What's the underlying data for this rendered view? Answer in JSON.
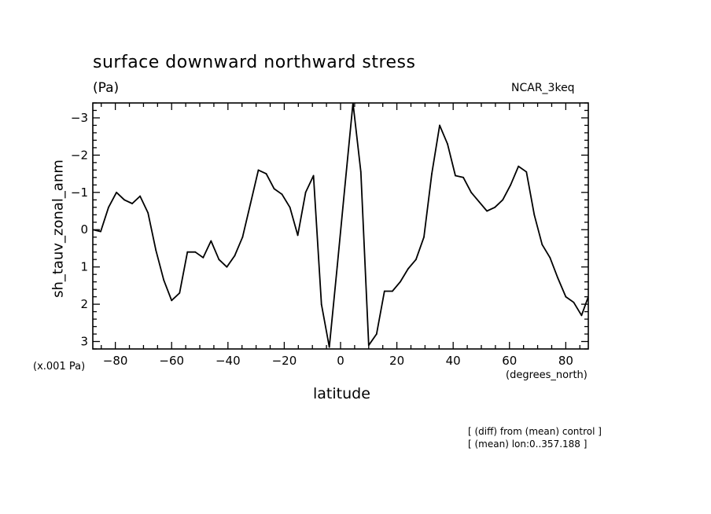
{
  "chart_data": {
    "type": "line",
    "title": "surface downward northward stress",
    "units_label": "(Pa)",
    "model_label": "NCAR_3keq",
    "xlabel": "latitude",
    "xlabel_units": "(degrees_north)",
    "ylabel": "sh_tauv_zonal_anm",
    "y_scale_label": "(x.001 Pa)",
    "notes": [
      "[ (diff) from (mean) control ]",
      "[ (mean) lon:0..357.188 ]"
    ],
    "xlim": [
      -88,
      88
    ],
    "ylim": [
      -3.4,
      3.2
    ],
    "y_inverted": true,
    "x_ticks": [
      -80,
      -60,
      -40,
      -20,
      0,
      20,
      40,
      60,
      80
    ],
    "x_tick_labels": [
      "−80",
      "−60",
      "−40",
      "−20",
      "0",
      "20",
      "40",
      "60",
      "80"
    ],
    "y_ticks": [
      -3,
      -2,
      -1,
      0,
      1,
      2,
      3
    ],
    "y_tick_labels": [
      "−3",
      "−2",
      "−1",
      "0",
      "1",
      "2",
      "3"
    ],
    "series": [
      {
        "name": "sh_tauv_zonal_anm",
        "x": [
          -88,
          -85.2,
          -82.4,
          -79.6,
          -76.8,
          -74,
          -71.2,
          -68.4,
          -65.6,
          -62.8,
          -60,
          -57.2,
          -54.4,
          -51.6,
          -48.8,
          -46,
          -43.2,
          -40.4,
          -37.6,
          -34.8,
          -32,
          -29.2,
          -26.4,
          -23.6,
          -20.8,
          -18,
          -15.2,
          -12.4,
          -9.6,
          -6.8,
          -4,
          -1.2,
          1.6,
          4.4,
          7.2,
          10,
          12.8,
          15.6,
          18.4,
          21.2,
          24,
          26.8,
          29.6,
          32.4,
          35.2,
          38,
          40.8,
          43.6,
          46.4,
          49.2,
          52,
          54.8,
          57.6,
          60.4,
          63.2,
          66,
          68.8,
          71.6,
          74.4,
          77.2,
          80,
          82.8,
          85.6,
          88
        ],
        "values": [
          0.0,
          0.05,
          -0.6,
          -1.0,
          -0.8,
          -0.7,
          -0.9,
          -0.45,
          0.55,
          1.35,
          1.9,
          1.7,
          0.6,
          0.6,
          0.75,
          0.3,
          0.8,
          1.0,
          0.7,
          0.2,
          -0.7,
          -1.6,
          -1.5,
          -1.1,
          -0.95,
          -0.6,
          0.15,
          -1.0,
          -1.45,
          2.0,
          3.15,
          1.0,
          -1.2,
          -3.4,
          -1.55,
          3.1,
          2.8,
          1.65,
          1.65,
          1.4,
          1.05,
          0.8,
          0.2,
          -1.5,
          -2.8,
          -2.3,
          -1.45,
          -1.4,
          -1.0,
          -0.75,
          -0.5,
          -0.6,
          -0.8,
          -1.2,
          -1.7,
          -1.55,
          -0.4,
          0.4,
          0.75,
          1.3,
          1.8,
          1.95,
          2.3,
          1.8
        ]
      }
    ]
  }
}
